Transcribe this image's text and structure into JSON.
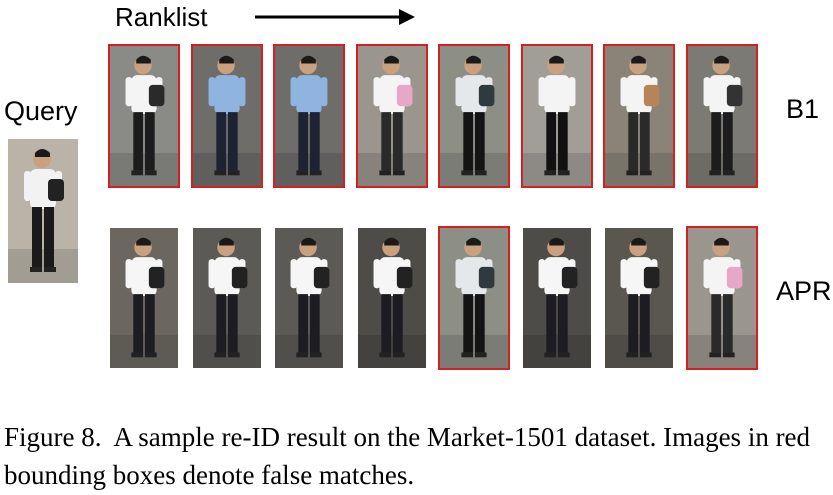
{
  "labels": {
    "ranklist": "Ranklist",
    "query": "Query",
    "row1": "B1",
    "row2": "APR"
  },
  "caption": {
    "prefix": "Figure 8.",
    "text": "A sample re-ID result on the Market-1501 dataset. Images in red bounding boxes denote false matches."
  },
  "query_image": {
    "shirt": "#f2f2f2",
    "pants": "#1a1a1a",
    "bg": "#b9b3a8",
    "bag": "#222222"
  },
  "rows": [
    {
      "name": "B1",
      "images": [
        {
          "false_match": true,
          "shirt": "#f4f4f4",
          "pants": "#1c1c1c",
          "bg": "#8a8a86",
          "bag": "#2a2a2a"
        },
        {
          "false_match": true,
          "shirt": "#8fb4e0",
          "pants": "#1d2330",
          "bg": "#6e6d6a",
          "bag": ""
        },
        {
          "false_match": true,
          "shirt": "#8fb4e0",
          "pants": "#1d2330",
          "bg": "#6e6d6a",
          "bag": ""
        },
        {
          "false_match": true,
          "shirt": "#f4f4f4",
          "pants": "#2a2a2a",
          "bg": "#9a968e",
          "bag": "#e9a7c8"
        },
        {
          "false_match": true,
          "shirt": "#e4e8ea",
          "pants": "#141414",
          "bg": "#8d8e86",
          "bag": "#2f3a3e"
        },
        {
          "false_match": true,
          "shirt": "#f4f4f4",
          "pants": "#111111",
          "bg": "#a19e98",
          "bag": ""
        },
        {
          "false_match": true,
          "shirt": "#f4f4f4",
          "pants": "#2a2a2a",
          "bg": "#8a8478",
          "bag": "#b7845a"
        },
        {
          "false_match": true,
          "shirt": "#f4f4f4",
          "pants": "#1c1c1c",
          "bg": "#7c7a74",
          "bag": "#333333"
        }
      ]
    },
    {
      "name": "APR",
      "images": [
        {
          "false_match": false,
          "shirt": "#f6f6f6",
          "pants": "#1c1c22",
          "bg": "#6b6760",
          "bag": "#222222"
        },
        {
          "false_match": false,
          "shirt": "#f6f6f6",
          "pants": "#1c1c22",
          "bg": "#5c5a56",
          "bag": "#222222"
        },
        {
          "false_match": false,
          "shirt": "#f6f6f6",
          "pants": "#1c1c22",
          "bg": "#5c5a56",
          "bag": "#222222"
        },
        {
          "false_match": false,
          "shirt": "#f6f6f6",
          "pants": "#1c1c22",
          "bg": "#4e4c48",
          "bag": "#222222"
        },
        {
          "false_match": true,
          "shirt": "#e4e8ea",
          "pants": "#141414",
          "bg": "#8d8e86",
          "bag": "#2f3a3e"
        },
        {
          "false_match": false,
          "shirt": "#f6f6f6",
          "pants": "#1c1c22",
          "bg": "#4e4c48",
          "bag": "#222222"
        },
        {
          "false_match": false,
          "shirt": "#f6f6f6",
          "pants": "#1c1c22",
          "bg": "#5a5650",
          "bag": "#222222"
        },
        {
          "false_match": true,
          "shirt": "#f4f4f4",
          "pants": "#2a2a2a",
          "bg": "#9a968e",
          "bag": "#e9a7c8"
        }
      ]
    }
  ]
}
